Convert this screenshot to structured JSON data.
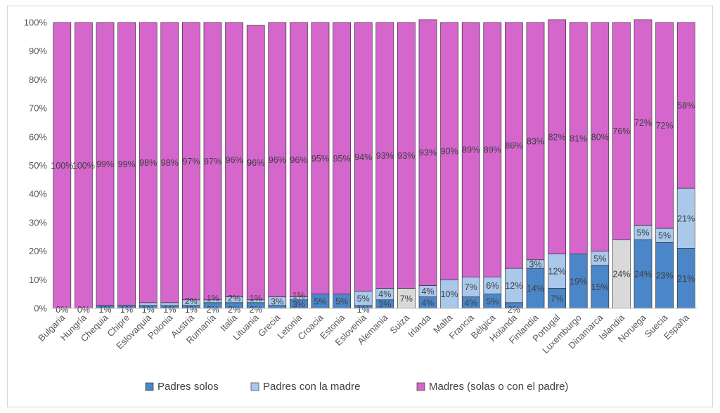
{
  "chart_data": {
    "type": "bar",
    "stacked": true,
    "percent_stacked": true,
    "categories": [
      "Bulgaria",
      "Hungría",
      "Chequia",
      "Chipre",
      "Eslovaquia",
      "Polonia",
      "Austria",
      "Rumanía",
      "Italia",
      "Lituania",
      "Grecia",
      "Letonia",
      "Croacia",
      "Estonia",
      "Eslovenia",
      "Alemania",
      "Suiza",
      "Irlanda",
      "Malta",
      "Francia",
      "Bélgica",
      "Holanda",
      "Finlandia",
      "Portugal",
      "Luxemburgo",
      "Dinamarca",
      "Islandia",
      "Noruega",
      "Suecia",
      "España"
    ],
    "series": [
      {
        "name": "Padres solos",
        "color": "#4a86c8",
        "values": [
          0,
          0,
          1,
          1,
          1,
          1,
          1,
          2,
          2,
          2,
          1,
          3,
          5,
          5,
          1,
          3,
          0,
          4,
          0,
          4,
          5,
          2,
          14,
          7,
          19,
          15,
          0,
          24,
          23,
          21
        ],
        "labels": [
          "0%",
          "0%",
          "1%",
          "1%",
          "1%",
          "1%",
          "1%",
          "2%",
          "2%",
          "2%",
          "",
          "3%",
          "5%",
          "5%",
          "1%",
          "3%",
          "",
          "4%",
          "",
          "4%",
          "5%",
          "2%",
          "14%",
          "7%",
          "19%",
          "15%",
          "",
          "24%",
          "23%",
          "21%"
        ]
      },
      {
        "name": "Padres con la madre",
        "color": "#a9c8ea",
        "values": [
          0,
          0,
          0,
          0,
          1,
          1,
          2,
          1,
          2,
          1,
          3,
          1,
          0,
          0,
          5,
          4,
          0,
          4,
          10,
          7,
          6,
          12,
          3,
          12,
          0,
          5,
          0,
          5,
          5,
          21
        ],
        "labels": [
          "",
          "",
          "",
          "",
          "",
          "",
          "2%",
          "1%",
          "2%",
          "1%",
          "3%",
          "1%",
          "",
          "",
          "5%",
          "4%",
          "",
          "4%",
          "10%",
          "7%",
          "6%",
          "12%",
          "3%",
          "12%",
          "",
          "5%",
          "",
          "5%",
          "5%",
          "21%"
        ]
      },
      {
        "name": "Madres (solas o con el padre)",
        "color": "#d466cc",
        "values": [
          100,
          100,
          99,
          99,
          98,
          98,
          97,
          97,
          96,
          96,
          96,
          96,
          95,
          95,
          94,
          93,
          93,
          93,
          90,
          89,
          89,
          86,
          83,
          82,
          81,
          80,
          76,
          72,
          72,
          58
        ],
        "labels": [
          "100%",
          "100%",
          "99%",
          "99%",
          "98%",
          "98%",
          "97%",
          "97%",
          "96%",
          "96%",
          "96%",
          "96%",
          "95%",
          "95%",
          "94%",
          "93%",
          "93%",
          "93%",
          "90%",
          "89%",
          "89%",
          "86%",
          "83%",
          "82%",
          "81%",
          "80%",
          "76%",
          "72%",
          "72%",
          "58%"
        ]
      }
    ],
    "unlabeled_segments": [
      {
        "category": "Suiza",
        "value": 7,
        "label": "7%",
        "color": "#d9d9d9"
      },
      {
        "category": "Islandia",
        "value": 24,
        "label": "24%",
        "color": "#d9d9d9"
      }
    ],
    "yticks": [
      "0%",
      "10%",
      "20%",
      "30%",
      "40%",
      "50%",
      "60%",
      "70%",
      "80%",
      "90%",
      "100%"
    ],
    "ylim": [
      0,
      100
    ],
    "legend_position": "bottom",
    "grid": false
  }
}
